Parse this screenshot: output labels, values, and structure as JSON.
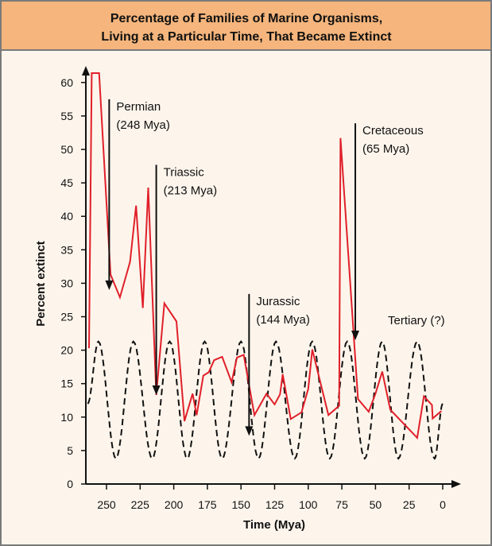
{
  "colors": {
    "title_bg": "#f5b57c",
    "background": "#fdf5ec",
    "border": "#7a7a7a",
    "extinction_line": "#e0202a",
    "cycle_line": "#111111"
  },
  "chart_data": {
    "type": "line",
    "title_lines": [
      "Percentage of Families of Marine Organisms,",
      "Living at a Particular Time, That Became Extinct"
    ],
    "xlabel": "Time (Mya)",
    "ylabel": "Percent extinct",
    "xlim": [
      265,
      0
    ],
    "ylim": [
      0,
      62
    ],
    "x_reversed": true,
    "xticks": [
      250,
      225,
      200,
      175,
      150,
      125,
      100,
      75,
      50,
      25,
      0
    ],
    "yticks": [
      0,
      5,
      10,
      15,
      20,
      25,
      30,
      35,
      40,
      45,
      50,
      55,
      60
    ],
    "grid": false,
    "series": [
      {
        "style": "solid-red",
        "x": [
          263,
          261,
          255.5,
          247,
          240,
          232.5,
          228,
          223,
          219,
          213,
          207,
          198,
          192,
          186,
          183,
          178,
          174,
          170,
          164,
          157,
          153,
          148,
          140,
          131,
          125,
          121,
          119,
          113,
          105,
          100,
          97,
          85,
          77,
          76,
          63,
          55,
          50,
          45,
          39,
          19,
          14,
          8,
          7.5,
          1
        ],
        "y": [
          20.3,
          61.4,
          61.4,
          31.3,
          27.9,
          33.2,
          41.6,
          26.3,
          44.3,
          13.3,
          27,
          24.3,
          9.4,
          13.5,
          10.3,
          16.2,
          16.7,
          18.5,
          19,
          15.2,
          18.9,
          19.3,
          10.3,
          13.5,
          11.9,
          13.4,
          16.4,
          9.7,
          10.7,
          14.2,
          20.1,
          10.3,
          11.7,
          51.7,
          12.7,
          10.8,
          13.5,
          16.8,
          11.1,
          6.9,
          13.1,
          11.8,
          9.8,
          10.9
        ]
      },
      {
        "style": "dashed-black-periodic",
        "x": [
          264,
          256,
          243,
          230,
          216,
          203,
          190,
          177,
          164,
          150,
          137,
          124,
          110,
          97,
          84,
          71,
          58,
          45,
          33,
          19,
          6,
          0
        ],
        "y": [
          12,
          21.3,
          3.8,
          21.3,
          3.8,
          21.3,
          3.8,
          21.3,
          3.8,
          21.3,
          3.8,
          21.3,
          3.8,
          21.3,
          3.8,
          21.3,
          3.8,
          21.3,
          3.8,
          21.3,
          3.8,
          12
        ]
      }
    ],
    "annotations": [
      {
        "line1": "Permian",
        "line2": "(248 Mya)",
        "x": 248,
        "arrow_from": 57.5,
        "arrow_to": 29
      },
      {
        "line1": "Triassic",
        "line2": "(213 Mya)",
        "x": 213,
        "arrow_from": 47.7,
        "arrow_to": 13.3
      },
      {
        "line1": "Jurassic",
        "line2": "(144 Mya)",
        "x": 144,
        "arrow_from": 28.4,
        "arrow_to": 7.2
      },
      {
        "line1": "Cretaceous",
        "line2": "(65 Mya)",
        "x": 65,
        "arrow_from": 53.9,
        "arrow_to": 21.5
      },
      {
        "line1": "Tertiary (?)",
        "line2": "",
        "x": 22,
        "arrow_from": null,
        "arrow_to": null
      }
    ]
  }
}
